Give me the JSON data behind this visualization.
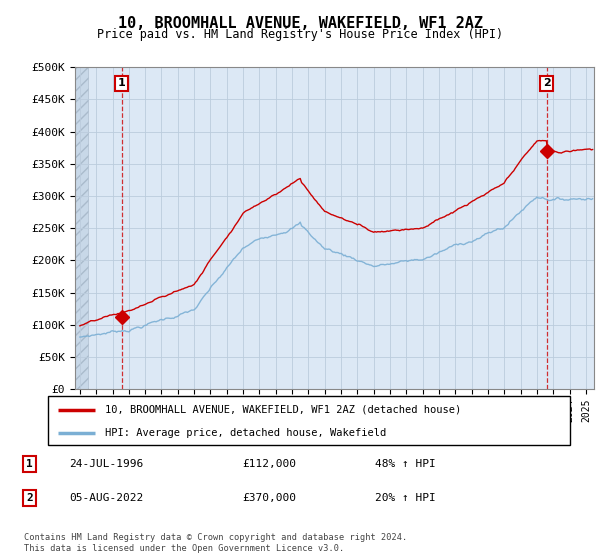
{
  "title": "10, BROOMHALL AVENUE, WAKEFIELD, WF1 2AZ",
  "subtitle": "Price paid vs. HM Land Registry's House Price Index (HPI)",
  "ylabel_ticks": [
    "£0",
    "£50K",
    "£100K",
    "£150K",
    "£200K",
    "£250K",
    "£300K",
    "£350K",
    "£400K",
    "£450K",
    "£500K"
  ],
  "ytick_values": [
    0,
    50000,
    100000,
    150000,
    200000,
    250000,
    300000,
    350000,
    400000,
    450000,
    500000
  ],
  "ylim": [
    0,
    500000
  ],
  "xlim_start": 1993.7,
  "xlim_end": 2025.5,
  "marker1_x": 1996.56,
  "marker1_y": 112000,
  "marker1_label": "1",
  "marker2_x": 2022.59,
  "marker2_y": 370000,
  "marker2_label": "2",
  "legend_line1": "10, BROOMHALL AVENUE, WAKEFIELD, WF1 2AZ (detached house)",
  "legend_line2": "HPI: Average price, detached house, Wakefield",
  "table_row1": [
    "1",
    "24-JUL-1996",
    "£112,000",
    "48% ↑ HPI"
  ],
  "table_row2": [
    "2",
    "05-AUG-2022",
    "£370,000",
    "20% ↑ HPI"
  ],
  "footer": "Contains HM Land Registry data © Crown copyright and database right 2024.\nThis data is licensed under the Open Government Licence v3.0.",
  "line_color_red": "#CC0000",
  "line_color_blue": "#7BAFD4",
  "bg_color": "#DCE8F5",
  "hatch_color": "#C8D8E8",
  "grid_color": "#BBCCDD",
  "marker_color": "#CC0000",
  "box_color": "#CC0000"
}
